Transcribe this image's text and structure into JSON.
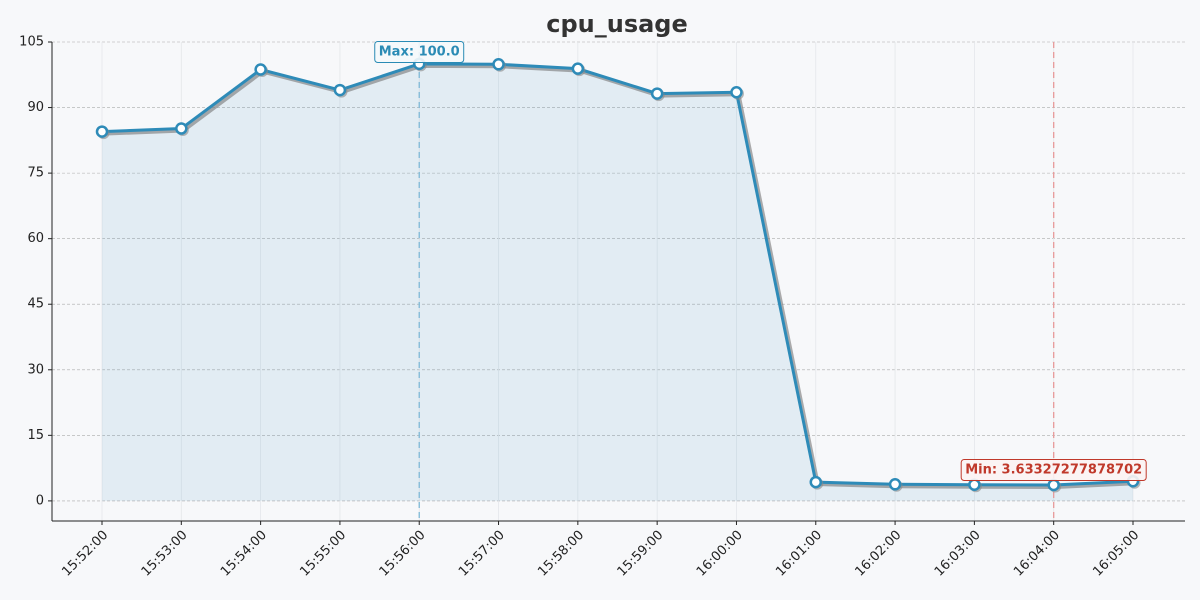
{
  "chart_data": {
    "type": "line",
    "title": "cpu_usage",
    "x": [
      "15:52:00",
      "15:53:00",
      "15:54:00",
      "15:55:00",
      "15:56:00",
      "15:57:00",
      "15:58:00",
      "15:59:00",
      "16:00:00",
      "16:01:00",
      "16:02:00",
      "16:03:00",
      "16:04:00",
      "16:05:00"
    ],
    "values": [
      84.5,
      85.2,
      98.7,
      94.0,
      100.0,
      99.9,
      98.9,
      93.2,
      93.5,
      4.3,
      3.8,
      3.7,
      3.63327277878702,
      4.5
    ],
    "color": "#2e8bb8",
    "ylim": [
      -4.6,
      105
    ],
    "yticks": [
      0,
      15,
      30,
      45,
      60,
      75,
      90,
      105
    ],
    "grid": true,
    "max_label": "Max: 100.0",
    "min_label": "Min: 3.63327277878702"
  }
}
